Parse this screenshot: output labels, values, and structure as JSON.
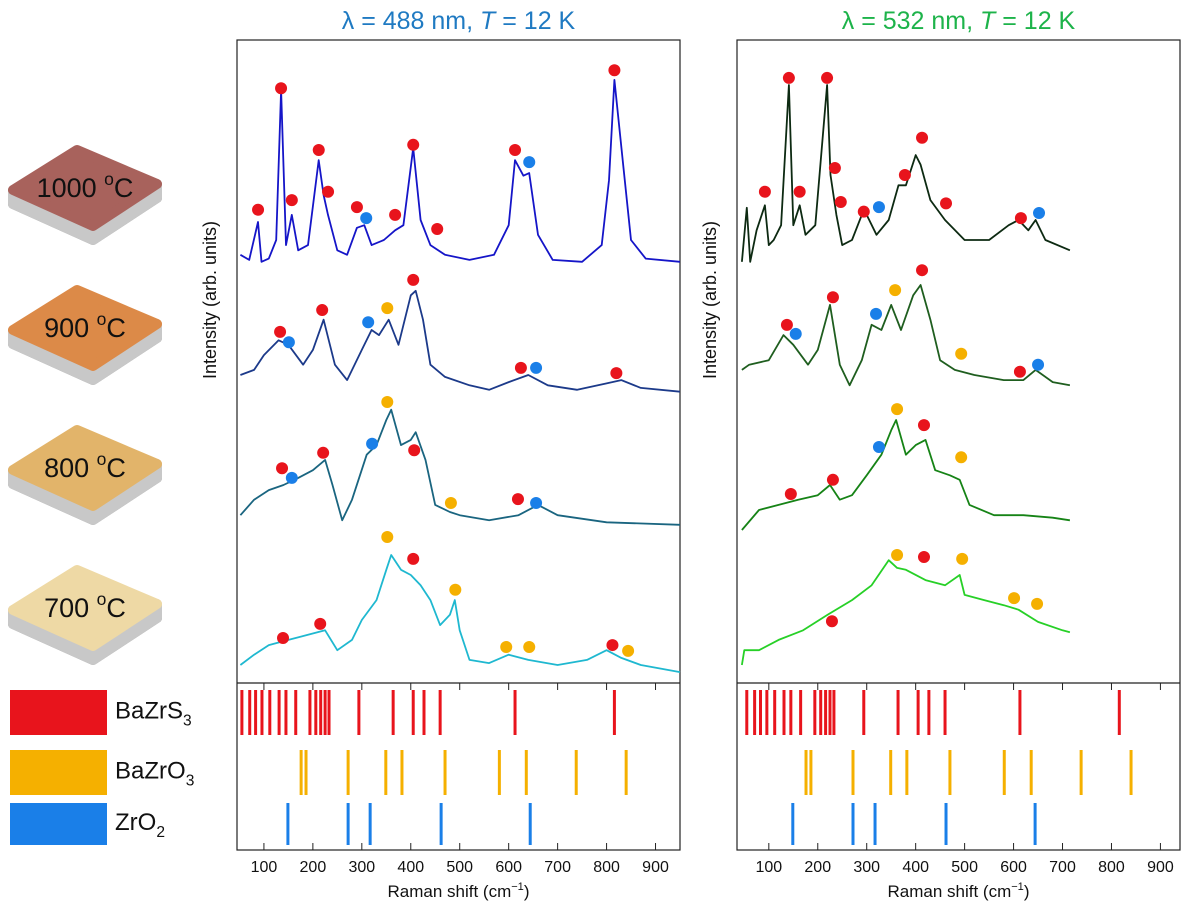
{
  "samples": [
    {
      "label": [
        "1000 ",
        "o",
        "C"
      ],
      "color": "#a8625c"
    },
    {
      "label": [
        "900 ",
        "o",
        "C"
      ],
      "color": "#dc8a48"
    },
    {
      "label": [
        "800 ",
        "o",
        "C"
      ],
      "color": "#e2b46a"
    },
    {
      "label": [
        "700 ",
        "o",
        "C"
      ],
      "color": "#eed9a5"
    }
  ],
  "legend": [
    {
      "label": [
        "BaZrS",
        "3"
      ],
      "color": "#e8141c",
      "positions": [
        55,
        71,
        83,
        96,
        112,
        131,
        145,
        165,
        194,
        206,
        216,
        225,
        233,
        294,
        364,
        405,
        427,
        460,
        613,
        816
      ]
    },
    {
      "label": [
        "BaZrO",
        "3"
      ],
      "color": "#f5b000",
      "positions": [
        176,
        186,
        272,
        349,
        382,
        470,
        581,
        636,
        738,
        840
      ]
    },
    {
      "label": [
        "ZrO",
        "2"
      ],
      "color": "#1a7fe8",
      "positions": [
        149,
        272,
        317,
        462,
        644
      ]
    }
  ],
  "chart_data": [
    {
      "type": "line",
      "title": [
        "λ = 488 nm, ",
        "T",
        " = 12 K"
      ],
      "title_color": "#1f7ac2",
      "ylabel": "Intensity (arb. units)",
      "xlabel": [
        "Raman shift (cm",
        "−1",
        ")"
      ],
      "xlim": [
        45,
        950
      ],
      "xticks": [
        100,
        200,
        300,
        400,
        500,
        600,
        700,
        800,
        900
      ],
      "ylim": [
        0,
        100
      ],
      "series": [
        {
          "color": "#1515c8",
          "x": [
            52,
            70,
            88,
            95,
            110,
            125,
            135,
            145,
            157,
            170,
            190,
            212,
            222,
            231,
            250,
            270,
            290,
            305,
            320,
            345,
            368,
            385,
            405,
            420,
            440,
            470,
            520,
            570,
            600,
            613,
            630,
            642,
            660,
            690,
            750,
            790,
            805,
            816,
            835,
            850,
            880,
            950
          ],
          "values": [
            66.6,
            65.8,
            71.7,
            65.5,
            66,
            68.9,
            92.2,
            68.1,
            72.8,
            67.3,
            68.1,
            81.3,
            75.9,
            72.8,
            67.3,
            66.6,
            70.8,
            71.2,
            68.1,
            68.9,
            70.4,
            71.2,
            83.2,
            72,
            68.1,
            66.6,
            65.8,
            66.6,
            71.2,
            81.3,
            78.9,
            79.3,
            69.7,
            65.8,
            65.5,
            68.1,
            78.2,
            93.8,
            79.8,
            68.9,
            66,
            65.5
          ],
          "markers": [
            {
              "color": "#e8141c",
              "x": [
                88,
                135,
                157,
                212,
                231,
                290,
                368,
                405,
                454,
                613,
                816
              ],
              "y": [
                73.6,
                92.5,
                75.1,
                82.9,
                76.4,
                74,
                72.8,
                83.7,
                70.6,
                82.9,
                95.3
              ]
            },
            {
              "color": "#1a7fe8",
              "x": [
                309,
                642
              ],
              "y": [
                72.3,
                81
              ]
            }
          ]
        },
        {
          "color": "#1c3a8a",
          "x": [
            52,
            80,
            100,
            130,
            150,
            180,
            200,
            222,
            245,
            270,
            300,
            320,
            335,
            355,
            375,
            400,
            410,
            425,
            440,
            470,
            520,
            560,
            600,
            640,
            680,
            740,
            800,
            830,
            870,
            950
          ],
          "values": [
            47.9,
            48.7,
            51,
            53.3,
            52.6,
            49.5,
            51.8,
            56.5,
            49.5,
            47.1,
            51.8,
            54.9,
            54.1,
            56.5,
            52.6,
            60.3,
            61,
            56.5,
            49.5,
            47.6,
            46.3,
            45.6,
            46.8,
            47.9,
            46.3,
            45.6,
            46.6,
            47.1,
            45.9,
            45.3
          ],
          "markers": [
            {
              "color": "#e8141c",
              "x": [
                133,
                219,
                405,
                625,
                820
              ],
              "y": [
                54.6,
                58,
                62.7,
                49,
                48.2
              ]
            },
            {
              "color": "#1a7fe8",
              "x": [
                151,
                313,
                656
              ],
              "y": [
                53,
                56.1,
                49
              ]
            },
            {
              "color": "#f5b000",
              "x": [
                352
              ],
              "y": [
                58.3
              ]
            }
          ]
        },
        {
          "color": "#1a6580",
          "x": [
            52,
            80,
            110,
            140,
            170,
            200,
            225,
            240,
            260,
            280,
            310,
            330,
            350,
            360,
            380,
            400,
            410,
            430,
            450,
            480,
            500,
            560,
            620,
            660,
            700,
            800,
            950
          ],
          "values": [
            26.1,
            28.5,
            30,
            30.8,
            31.9,
            33.1,
            34.7,
            30.8,
            25.3,
            28.5,
            35.5,
            37,
            40.9,
            42.5,
            37,
            37.8,
            39,
            34.7,
            27.7,
            26.6,
            26.1,
            25.3,
            26.1,
            27.7,
            26.1,
            25,
            24.6
          ],
          "markers": [
            {
              "color": "#e8141c",
              "x": [
                137,
                221,
                407,
                619
              ],
              "y": [
                33.4,
                35.8,
                36.2,
                28.6
              ]
            },
            {
              "color": "#1a7fe8",
              "x": [
                157,
                321,
                656
              ],
              "y": [
                31.9,
                37.2,
                28
              ]
            },
            {
              "color": "#f5b000",
              "x": [
                352,
                482
              ],
              "y": [
                43.7,
                28
              ]
            }
          ]
        },
        {
          "color": "#1fb8d0",
          "x": [
            52,
            80,
            110,
            150,
            190,
            225,
            250,
            280,
            300,
            330,
            350,
            360,
            380,
            400,
            420,
            440,
            460,
            480,
            490,
            500,
            520,
            560,
            600,
            640,
            700,
            760,
            800,
            830,
            870,
            950
          ],
          "values": [
            2.8,
            4.4,
            5.9,
            6.7,
            7.5,
            8.2,
            5.1,
            6.7,
            9.8,
            12.9,
            17.6,
            19.9,
            17.6,
            16.8,
            15.2,
            12.9,
            9,
            10.6,
            12.9,
            8.2,
            3.6,
            3.1,
            4.4,
            3.6,
            2.8,
            3.6,
            5.1,
            3.9,
            2.8,
            1.7
          ],
          "markers": [
            {
              "color": "#e8141c",
              "x": [
                139,
                215,
                405,
                812
              ],
              "y": [
                7,
                9.2,
                19.3,
                5.9
              ]
            },
            {
              "color": "#f5b000",
              "x": [
                352,
                491,
                595,
                642,
                844
              ],
              "y": [
                22.7,
                14.5,
                5.6,
                5.6,
                5
              ]
            }
          ]
        }
      ]
    },
    {
      "type": "line",
      "title": [
        "λ = 532 nm, ",
        "T",
        " = 12 K"
      ],
      "title_color": "#1db34a",
      "ylabel": "Intensity (arb. units)",
      "xlabel": [
        "Raman shift (cm",
        "−1",
        ")"
      ],
      "xlim": [
        35,
        940
      ],
      "xticks": [
        100,
        200,
        300,
        400,
        500,
        600,
        700,
        800,
        900
      ],
      "ylim": [
        0,
        100
      ],
      "series": [
        {
          "color": "#0d2a12",
          "x": [
            45,
            55,
            62,
            75,
            92,
            100,
            110,
            125,
            141,
            150,
            163,
            175,
            195,
            219,
            226,
            238,
            250,
            270,
            290,
            300,
            320,
            345,
            365,
            380,
            400,
            410,
            430,
            460,
            500,
            550,
            590,
            610,
            630,
            645,
            665,
            715
          ],
          "values": [
            65.5,
            73.9,
            65.5,
            70.4,
            74.3,
            68.1,
            68.9,
            71.2,
            93,
            71.2,
            74.3,
            69.7,
            71.2,
            93,
            79,
            72.8,
            68.1,
            68.9,
            72.8,
            72.8,
            69.7,
            72,
            77.4,
            77.4,
            82.1,
            80.6,
            75.1,
            72,
            68.9,
            68.9,
            71.2,
            72,
            70.4,
            72,
            68.9,
            67.3
          ],
          "markers": [
            {
              "color": "#e8141c",
              "x": [
                92,
                141,
                163,
                219,
                235,
                247,
                294,
                378,
                413,
                462,
                615
              ],
              "y": [
                76.4,
                94.1,
                76.4,
                94.1,
                80.1,
                74.8,
                73.3,
                79,
                84.8,
                74.6,
                72.3
              ]
            },
            {
              "color": "#1a7fe8",
              "x": [
                325,
                652
              ],
              "y": [
                74,
                73.1
              ]
            }
          ]
        },
        {
          "color": "#1f5e1f",
          "x": [
            45,
            60,
            100,
            130,
            150,
            180,
            200,
            225,
            245,
            265,
            290,
            310,
            330,
            350,
            370,
            395,
            410,
            430,
            450,
            480,
            520,
            580,
            620,
            645,
            680,
            715
          ],
          "values": [
            48.7,
            49.5,
            50.2,
            54.1,
            52.6,
            49.5,
            51.8,
            58.8,
            49.5,
            46.3,
            50.2,
            55.7,
            54.9,
            58.8,
            54.9,
            60.3,
            61.9,
            56.5,
            50.2,
            48.7,
            47.9,
            47.1,
            47.1,
            48.7,
            46.8,
            46.3
          ],
          "markers": [
            {
              "color": "#e8141c",
              "x": [
                137,
                231,
                413,
                613
              ],
              "y": [
                55.7,
                60,
                64.2,
                48.4
              ]
            },
            {
              "color": "#1a7fe8",
              "x": [
                155,
                319,
                650
              ],
              "y": [
                54.3,
                57.4,
                49.5
              ]
            },
            {
              "color": "#f5b000",
              "x": [
                358,
                493
              ],
              "y": [
                61.1,
                51.2
              ]
            }
          ]
        },
        {
          "color": "#168316",
          "x": [
            45,
            80,
            120,
            160,
            200,
            225,
            245,
            270,
            300,
            330,
            350,
            360,
            380,
            400,
            420,
            440,
            470,
            490,
            510,
            560,
            620,
            680,
            715
          ],
          "values": [
            23.8,
            26.9,
            27.7,
            28.5,
            29.2,
            30.8,
            28.5,
            29.2,
            32.3,
            35.5,
            39.3,
            40.9,
            35.5,
            37,
            37.8,
            33.1,
            32.3,
            31.6,
            27.7,
            26.1,
            26.1,
            25.7,
            25.3
          ],
          "markers": [
            {
              "color": "#e8141c",
              "x": [
                145,
                231,
                417
              ],
              "y": [
                29.4,
                31.6,
                40.1
              ]
            },
            {
              "color": "#1a7fe8",
              "x": [
                325
              ],
              "y": [
                36.7
              ]
            },
            {
              "color": "#f5b000",
              "x": [
                362,
                493
              ],
              "y": [
                42.6,
                35.1
              ]
            }
          ]
        },
        {
          "color": "#27d027",
          "x": [
            45,
            50,
            80,
            120,
            170,
            220,
            270,
            310,
            345,
            362,
            380,
            420,
            460,
            490,
            500,
            540,
            580,
            610,
            650,
            700,
            715
          ],
          "values": [
            2.8,
            5.1,
            5.1,
            6.7,
            8.2,
            10.6,
            12.9,
            15.2,
            19.1,
            17.9,
            17.6,
            16,
            15.2,
            16.8,
            13.7,
            12.9,
            12.1,
            11.4,
            9.5,
            8.2,
            7.9
          ],
          "markers": [
            {
              "color": "#e8141c",
              "x": [
                229,
                417
              ],
              "y": [
                9.6,
                19.6
              ]
            },
            {
              "color": "#f5b000",
              "x": [
                362,
                495,
                601,
                648
              ],
              "y": [
                19.9,
                19.3,
                13.2,
                12.3
              ]
            }
          ]
        }
      ]
    }
  ]
}
